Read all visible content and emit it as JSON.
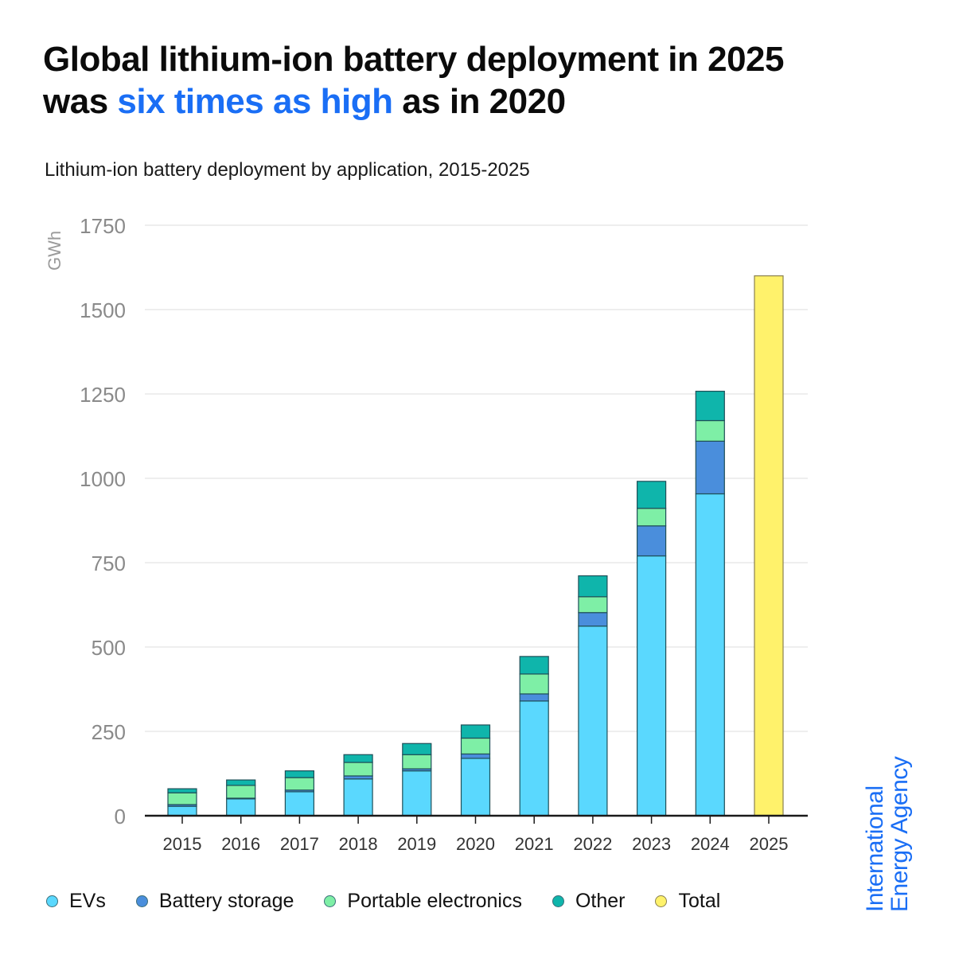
{
  "header": {
    "title_part1": "Global lithium-ion battery deployment in 2025",
    "title_part2_prefix": "was ",
    "title_highlight": "six times as high",
    "title_part2_suffix": " as in 2020",
    "subtitle": "Lithium-ion battery deployment by application, 2015-2025"
  },
  "brand": {
    "line1": "International",
    "line2": "Energy Agency"
  },
  "colors": {
    "highlight": "#1a6ef5",
    "evs": "#5ad8fe",
    "battery_storage": "#4a8edc",
    "portable_electronics": "#7eefa6",
    "other": "#0fb5ab",
    "total": "#fff26b",
    "grid": "#e8e8e8",
    "axis": "#1a1a1a"
  },
  "chart_data": {
    "type": "bar",
    "stacked": true,
    "title": "Lithium-ion battery deployment by application, 2015-2025",
    "xlabel": "",
    "ylabel": "GWh",
    "ylim": [
      0,
      1750
    ],
    "yticks": [
      0,
      250,
      500,
      750,
      1000,
      1250,
      1500,
      1750
    ],
    "ytick_labels": [
      "0",
      "250",
      "500",
      "750",
      "1000",
      "1250",
      "1500",
      "1750"
    ],
    "grid": true,
    "legend_position": "bottom",
    "categories": [
      "2015",
      "2016",
      "2017",
      "2018",
      "2019",
      "2020",
      "2021",
      "2022",
      "2023",
      "2024",
      "2025"
    ],
    "series": [
      {
        "name": "EVs",
        "key": "evs",
        "values": [
          28,
          50,
          71,
          109,
          133,
          170,
          340,
          562,
          770,
          954,
          0
        ]
      },
      {
        "name": "Battery storage",
        "key": "battery_storage",
        "values": [
          5,
          2,
          5,
          9,
          6,
          13,
          21,
          40,
          89,
          156,
          0
        ]
      },
      {
        "name": "Portable electronics",
        "key": "portable_electronics",
        "values": [
          35,
          38,
          37,
          40,
          42,
          47,
          59,
          47,
          52,
          61,
          0
        ]
      },
      {
        "name": "Other",
        "key": "other",
        "values": [
          12,
          16,
          20,
          23,
          33,
          39,
          52,
          62,
          80,
          87,
          0
        ]
      },
      {
        "name": "Total",
        "key": "total",
        "values": [
          0,
          0,
          0,
          0,
          0,
          0,
          0,
          0,
          0,
          0,
          1600
        ]
      }
    ]
  }
}
